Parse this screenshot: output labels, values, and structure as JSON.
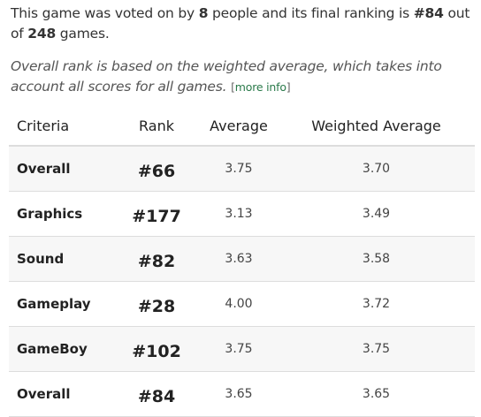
{
  "intro": {
    "part1": "This game was voted on by ",
    "voters": "8",
    "part2": " people and its final ranking is ",
    "final_rank": "#84",
    "part3": " out of ",
    "total_games": "248",
    "part4": " games."
  },
  "note": {
    "text": "Overall rank is based on the weighted average, which takes into account all scores for all games.",
    "more_open": "[",
    "more_label": "more info",
    "more_close": "]"
  },
  "table": {
    "headers": {
      "criteria": "Criteria",
      "rank": "Rank",
      "average": "Average",
      "weighted": "Weighted Average"
    },
    "rows": [
      {
        "criteria": "Overall",
        "rank": "#66",
        "average": "3.75",
        "weighted": "3.70"
      },
      {
        "criteria": "Graphics",
        "rank": "#177",
        "average": "3.13",
        "weighted": "3.49"
      },
      {
        "criteria": "Sound",
        "rank": "#82",
        "average": "3.63",
        "weighted": "3.58"
      },
      {
        "criteria": "Gameplay",
        "rank": "#28",
        "average": "4.00",
        "weighted": "3.72"
      },
      {
        "criteria": "GameBoy",
        "rank": "#102",
        "average": "3.75",
        "weighted": "3.75"
      },
      {
        "criteria": "Overall",
        "rank": "#84",
        "average": "3.65",
        "weighted": "3.65"
      }
    ]
  }
}
